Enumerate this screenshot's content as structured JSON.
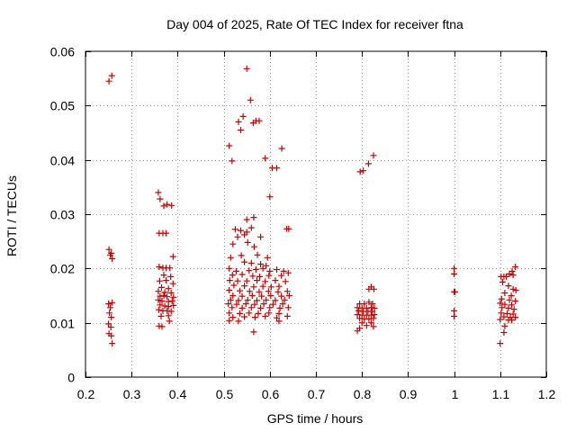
{
  "chart_data": {
    "type": "scatter",
    "title": "Day 004 of 2025, Rate Of TEC Index for receiver ftna",
    "xlabel": "GPS time / hours",
    "ylabel": "ROTI / TECUs",
    "xlim": [
      0.2,
      1.2
    ],
    "ylim": [
      0,
      0.06
    ],
    "x_ticks": [
      0.2,
      0.3,
      0.4,
      0.5,
      0.6,
      0.7,
      0.8,
      0.9,
      1.0,
      1.1,
      1.2
    ],
    "x_tick_labels": [
      "0.2",
      "0.3",
      "0.4",
      "0.5",
      "0.6",
      "0.7",
      "0.8",
      "0.9",
      "1",
      "1.1",
      "1.2"
    ],
    "y_ticks": [
      0,
      0.01,
      0.02,
      0.03,
      0.04,
      0.05,
      0.06
    ],
    "y_tick_labels": [
      "0",
      "0.01",
      "0.02",
      "0.03",
      "0.04",
      "0.05",
      "0.06"
    ],
    "grid": true,
    "marker": "plus",
    "color": "#cc0000",
    "series": [
      {
        "name": "ROTI",
        "points": [
          [
            0.251,
            0.0545
          ],
          [
            0.257,
            0.0555
          ],
          [
            0.251,
            0.0235
          ],
          [
            0.254,
            0.0225
          ],
          [
            0.258,
            0.0218
          ],
          [
            0.256,
            0.0228
          ],
          [
            0.25,
            0.0135
          ],
          [
            0.254,
            0.0128
          ],
          [
            0.258,
            0.0137
          ],
          [
            0.252,
            0.0118
          ],
          [
            0.256,
            0.011
          ],
          [
            0.25,
            0.0098
          ],
          [
            0.255,
            0.0092
          ],
          [
            0.251,
            0.008
          ],
          [
            0.256,
            0.0076
          ],
          [
            0.258,
            0.0062
          ],
          [
            0.358,
            0.034
          ],
          [
            0.362,
            0.0328
          ],
          [
            0.37,
            0.0315
          ],
          [
            0.377,
            0.0318
          ],
          [
            0.387,
            0.0316
          ],
          [
            0.36,
            0.0265
          ],
          [
            0.368,
            0.0265
          ],
          [
            0.375,
            0.0265
          ],
          [
            0.39,
            0.0222
          ],
          [
            0.36,
            0.0203
          ],
          [
            0.368,
            0.0201
          ],
          [
            0.375,
            0.0201
          ],
          [
            0.383,
            0.0201
          ],
          [
            0.37,
            0.0188
          ],
          [
            0.385,
            0.0185
          ],
          [
            0.361,
            0.0177
          ],
          [
            0.375,
            0.0178
          ],
          [
            0.39,
            0.0172
          ],
          [
            0.365,
            0.0165
          ],
          [
            0.38,
            0.0163
          ],
          [
            0.358,
            0.0158
          ],
          [
            0.372,
            0.0156
          ],
          [
            0.386,
            0.0155
          ],
          [
            0.362,
            0.0149
          ],
          [
            0.37,
            0.015
          ],
          [
            0.377,
            0.0148
          ],
          [
            0.391,
            0.0147
          ],
          [
            0.358,
            0.0142
          ],
          [
            0.366,
            0.014
          ],
          [
            0.38,
            0.0139
          ],
          [
            0.388,
            0.014
          ],
          [
            0.362,
            0.0133
          ],
          [
            0.372,
            0.0131
          ],
          [
            0.38,
            0.013
          ],
          [
            0.391,
            0.0132
          ],
          [
            0.359,
            0.0124
          ],
          [
            0.368,
            0.0122
          ],
          [
            0.377,
            0.0122
          ],
          [
            0.386,
            0.0121
          ],
          [
            0.364,
            0.0112
          ],
          [
            0.38,
            0.0113
          ],
          [
            0.36,
            0.0094
          ],
          [
            0.366,
            0.0093
          ],
          [
            0.382,
            0.0103
          ],
          [
            0.55,
            0.0568
          ],
          [
            0.558,
            0.051
          ],
          [
            0.542,
            0.048
          ],
          [
            0.532,
            0.047
          ],
          [
            0.564,
            0.0468
          ],
          [
            0.57,
            0.0472
          ],
          [
            0.577,
            0.0472
          ],
          [
            0.537,
            0.0455
          ],
          [
            0.512,
            0.0426
          ],
          [
            0.626,
            0.0421
          ],
          [
            0.59,
            0.0403
          ],
          [
            0.518,
            0.0398
          ],
          [
            0.605,
            0.0385
          ],
          [
            0.615,
            0.0385
          ],
          [
            0.6,
            0.0332
          ],
          [
            0.565,
            0.0294
          ],
          [
            0.55,
            0.029
          ],
          [
            0.525,
            0.0272
          ],
          [
            0.537,
            0.027
          ],
          [
            0.55,
            0.0267
          ],
          [
            0.56,
            0.0275
          ],
          [
            0.637,
            0.0273
          ],
          [
            0.641,
            0.0273
          ],
          [
            0.545,
            0.0262
          ],
          [
            0.53,
            0.0258
          ],
          [
            0.58,
            0.0258
          ],
          [
            0.52,
            0.0245
          ],
          [
            0.552,
            0.0248
          ],
          [
            0.566,
            0.024
          ],
          [
            0.515,
            0.022
          ],
          [
            0.538,
            0.0224
          ],
          [
            0.573,
            0.0225
          ],
          [
            0.595,
            0.022
          ],
          [
            0.545,
            0.0212
          ],
          [
            0.56,
            0.021
          ],
          [
            0.58,
            0.0208
          ],
          [
            0.592,
            0.0205
          ],
          [
            0.512,
            0.02
          ],
          [
            0.527,
            0.0195
          ],
          [
            0.555,
            0.0196
          ],
          [
            0.57,
            0.0198
          ],
          [
            0.585,
            0.02
          ],
          [
            0.6,
            0.0195
          ],
          [
            0.615,
            0.0198
          ],
          [
            0.63,
            0.0195
          ],
          [
            0.64,
            0.0192
          ],
          [
            0.519,
            0.0188
          ],
          [
            0.54,
            0.0189
          ],
          [
            0.563,
            0.0186
          ],
          [
            0.578,
            0.0185
          ],
          [
            0.598,
            0.0187
          ],
          [
            0.625,
            0.0187
          ],
          [
            0.513,
            0.0178
          ],
          [
            0.53,
            0.0177
          ],
          [
            0.55,
            0.0177
          ],
          [
            0.572,
            0.0178
          ],
          [
            0.59,
            0.0176
          ],
          [
            0.612,
            0.0178
          ],
          [
            0.634,
            0.0176
          ],
          [
            0.522,
            0.0169
          ],
          [
            0.545,
            0.0168
          ],
          [
            0.565,
            0.0166
          ],
          [
            0.585,
            0.0167
          ],
          [
            0.603,
            0.0166
          ],
          [
            0.62,
            0.0167
          ],
          [
            0.512,
            0.016
          ],
          [
            0.535,
            0.0159
          ],
          [
            0.556,
            0.0158
          ],
          [
            0.577,
            0.0157
          ],
          [
            0.597,
            0.0158
          ],
          [
            0.618,
            0.0157
          ],
          [
            0.638,
            0.0158
          ],
          [
            0.52,
            0.015
          ],
          [
            0.54,
            0.0149
          ],
          [
            0.562,
            0.015
          ],
          [
            0.582,
            0.0149
          ],
          [
            0.602,
            0.015
          ],
          [
            0.625,
            0.0149
          ],
          [
            0.642,
            0.015
          ],
          [
            0.515,
            0.0142
          ],
          [
            0.532,
            0.0141
          ],
          [
            0.552,
            0.0142
          ],
          [
            0.572,
            0.0141
          ],
          [
            0.592,
            0.0142
          ],
          [
            0.612,
            0.0141
          ],
          [
            0.632,
            0.0142
          ],
          [
            0.51,
            0.0135
          ],
          [
            0.528,
            0.0134
          ],
          [
            0.548,
            0.0135
          ],
          [
            0.567,
            0.0134
          ],
          [
            0.587,
            0.0135
          ],
          [
            0.607,
            0.0134
          ],
          [
            0.628,
            0.0135
          ],
          [
            0.518,
            0.0128
          ],
          [
            0.54,
            0.0127
          ],
          [
            0.56,
            0.0128
          ],
          [
            0.58,
            0.0127
          ],
          [
            0.6,
            0.0128
          ],
          [
            0.622,
            0.0127
          ],
          [
            0.64,
            0.0128
          ],
          [
            0.512,
            0.0118
          ],
          [
            0.535,
            0.0117
          ],
          [
            0.555,
            0.0118
          ],
          [
            0.575,
            0.0117
          ],
          [
            0.598,
            0.0118
          ],
          [
            0.62,
            0.0117
          ],
          [
            0.52,
            0.011
          ],
          [
            0.545,
            0.0111
          ],
          [
            0.568,
            0.011
          ],
          [
            0.59,
            0.0112
          ],
          [
            0.615,
            0.0109
          ],
          [
            0.638,
            0.0112
          ],
          [
            0.512,
            0.0104
          ],
          [
            0.532,
            0.0103
          ],
          [
            0.62,
            0.0103
          ],
          [
            0.565,
            0.0083
          ],
          [
            0.796,
            0.0378
          ],
          [
            0.803,
            0.038
          ],
          [
            0.814,
            0.0393
          ],
          [
            0.825,
            0.0408
          ],
          [
            0.82,
            0.0166
          ],
          [
            0.826,
            0.0162
          ],
          [
            0.815,
            0.0162
          ],
          [
            0.795,
            0.0135
          ],
          [
            0.805,
            0.0135
          ],
          [
            0.815,
            0.0138
          ],
          [
            0.823,
            0.0135
          ],
          [
            0.79,
            0.0128
          ],
          [
            0.8,
            0.0127
          ],
          [
            0.81,
            0.0127
          ],
          [
            0.82,
            0.0128
          ],
          [
            0.827,
            0.0127
          ],
          [
            0.793,
            0.0122
          ],
          [
            0.803,
            0.0121
          ],
          [
            0.813,
            0.0121
          ],
          [
            0.822,
            0.0121
          ],
          [
            0.79,
            0.0115
          ],
          [
            0.8,
            0.0114
          ],
          [
            0.81,
            0.0114
          ],
          [
            0.82,
            0.0114
          ],
          [
            0.827,
            0.0115
          ],
          [
            0.795,
            0.0108
          ],
          [
            0.805,
            0.0107
          ],
          [
            0.815,
            0.0107
          ],
          [
            0.825,
            0.0108
          ],
          [
            0.8,
            0.01
          ],
          [
            0.82,
            0.01
          ],
          [
            0.81,
            0.0095
          ],
          [
            0.825,
            0.0093
          ],
          [
            0.795,
            0.009
          ],
          [
            0.79,
            0.0085
          ],
          [
            1.0,
            0.02
          ],
          [
            1.0,
            0.019
          ],
          [
            1.0,
            0.0157
          ],
          [
            1.002,
            0.0157
          ],
          [
            1.0,
            0.0122
          ],
          [
            1.0,
            0.0112
          ],
          [
            1.102,
            0.0185
          ],
          [
            1.108,
            0.0185
          ],
          [
            1.113,
            0.0185
          ],
          [
            1.12,
            0.019
          ],
          [
            1.126,
            0.0195
          ],
          [
            1.133,
            0.0203
          ],
          [
            1.128,
            0.0188
          ],
          [
            1.105,
            0.0175
          ],
          [
            1.118,
            0.0168
          ],
          [
            1.128,
            0.0162
          ],
          [
            1.134,
            0.016
          ],
          [
            1.11,
            0.0155
          ],
          [
            1.124,
            0.015
          ],
          [
            1.103,
            0.0144
          ],
          [
            1.12,
            0.0142
          ],
          [
            1.133,
            0.014
          ],
          [
            1.1,
            0.0136
          ],
          [
            1.11,
            0.0134
          ],
          [
            1.125,
            0.0133
          ],
          [
            1.104,
            0.0128
          ],
          [
            1.118,
            0.0127
          ],
          [
            1.13,
            0.0125
          ],
          [
            1.102,
            0.0118
          ],
          [
            1.115,
            0.0117
          ],
          [
            1.128,
            0.0116
          ],
          [
            1.108,
            0.0111
          ],
          [
            1.122,
            0.011
          ],
          [
            1.133,
            0.011
          ],
          [
            1.118,
            0.0105
          ],
          [
            1.125,
            0.0105
          ],
          [
            1.1,
            0.0106
          ],
          [
            1.11,
            0.0094
          ],
          [
            1.108,
            0.0082
          ],
          [
            1.1,
            0.0062
          ]
        ]
      }
    ]
  }
}
